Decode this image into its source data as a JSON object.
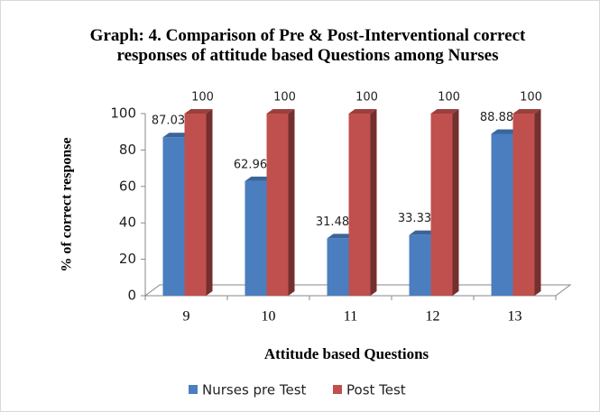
{
  "chart_data": {
    "type": "bar3d",
    "title": "Graph: 4. Comparison of Pre & Post-Interventional correct responses of attitude based Questions among Nurses",
    "x_label": "Attitude based Questions",
    "y_label": "% of correct  response",
    "categories": [
      "9",
      "10",
      "11",
      "12",
      "13"
    ],
    "series": [
      {
        "name": "Nurses pre Test",
        "color": "#4a7ebf",
        "values": [
          87.03,
          62.96,
          31.48,
          33.33,
          88.88
        ]
      },
      {
        "name": "Post Test",
        "color": "#c0504d",
        "values": [
          100,
          100,
          100,
          100,
          100
        ]
      }
    ],
    "ylim": [
      0,
      100
    ],
    "yticks": [
      0,
      20,
      40,
      60,
      80,
      100
    ],
    "legend": "bottom"
  }
}
